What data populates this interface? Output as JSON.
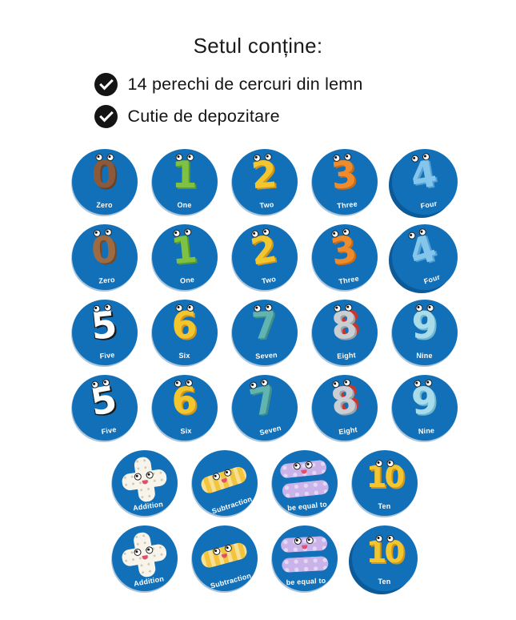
{
  "header": {
    "title": "Setul conține:",
    "items": [
      {
        "icon": "check-icon",
        "label": "14 perechi de cercuri din lemn"
      },
      {
        "icon": "check-icon",
        "label": "Cutie de depozitare"
      }
    ]
  },
  "colors": {
    "disc_blue": "#1170b8",
    "disc_shadow": "#0d5a99",
    "label_text": "#ffffff",
    "check_circle": "#141414"
  },
  "grid": {
    "rows": [
      {
        "tokens": [
          {
            "id": "zero-a",
            "type": "number",
            "glyph": "0",
            "label": "Zero",
            "animal": "monkey",
            "color": "#8a5a3a",
            "shade": "#6b4126",
            "rotate": 0
          },
          {
            "id": "one-a",
            "type": "number",
            "glyph": "1",
            "label": "One",
            "animal": "snake",
            "color": "#7fc243",
            "shade": "#589b2b",
            "rotate": 0
          },
          {
            "id": "two-a",
            "type": "number",
            "glyph": "2",
            "label": "Two",
            "animal": "duck",
            "color": "#f3c52e",
            "shade": "#d0951c",
            "rotate": -5
          },
          {
            "id": "three-a",
            "type": "number",
            "glyph": "3",
            "label": "Three",
            "animal": "fox",
            "color": "#ee8b2c",
            "shade": "#c66c18",
            "rotate": -6
          },
          {
            "id": "four-a",
            "type": "number",
            "glyph": "4",
            "label": "Four",
            "animal": "caterpillar",
            "color": "#84c5ec",
            "shade": "#53a0d4",
            "rotate": -10,
            "shadow": true
          }
        ]
      },
      {
        "tokens": [
          {
            "id": "zero-b",
            "type": "number",
            "glyph": "0",
            "label": "Zero",
            "animal": "sheep",
            "color": "#9c6b43",
            "shade": "#744a2b",
            "rotate": -5
          },
          {
            "id": "one-b",
            "type": "number",
            "glyph": "1",
            "label": "One",
            "animal": "snake",
            "color": "#7fc243",
            "shade": "#589b2b",
            "rotate": -6
          },
          {
            "id": "two-b",
            "type": "number",
            "glyph": "2",
            "label": "Two",
            "animal": "duck",
            "color": "#f3c52e",
            "shade": "#d0951c",
            "rotate": -10
          },
          {
            "id": "three-b",
            "type": "number",
            "glyph": "3",
            "label": "Three",
            "animal": "fox",
            "color": "#ee8b2c",
            "shade": "#c66c18",
            "rotate": -10
          },
          {
            "id": "four-b",
            "type": "number",
            "glyph": "4",
            "label": "Four",
            "animal": "caterpillar",
            "color": "#84c5ec",
            "shade": "#53a0d4",
            "rotate": -18,
            "shadow": true
          }
        ]
      },
      {
        "tokens": [
          {
            "id": "five-a",
            "type": "number",
            "glyph": "5",
            "label": "Five",
            "animal": "zebra",
            "color": "#ffffff",
            "shade": "#1a1a1a",
            "rotate": -6
          },
          {
            "id": "six-a",
            "type": "number",
            "glyph": "6",
            "label": "Six",
            "animal": "giraffe",
            "color": "#f3c52e",
            "shade": "#d0951c",
            "rotate": 0
          },
          {
            "id": "seven-a",
            "type": "number",
            "glyph": "7",
            "label": "Seven",
            "animal": "crocodile",
            "color": "#62b4b0",
            "shade": "#3f8f8c",
            "rotate": -4
          },
          {
            "id": "eight-a",
            "type": "number",
            "glyph": "8",
            "label": "Eight",
            "animal": "dinosaur",
            "color": "#c9ced4",
            "shade": "#9aa1a9",
            "rotate": -4
          },
          {
            "id": "nine-a",
            "type": "number",
            "glyph": "9",
            "label": "Nine",
            "animal": "elephant",
            "color": "#a8dcea",
            "shade": "#6fb8d0",
            "rotate": 0
          }
        ]
      },
      {
        "tokens": [
          {
            "id": "five-b",
            "type": "number",
            "glyph": "5",
            "label": "Five",
            "animal": "zebra",
            "color": "#ffffff",
            "shade": "#1a1a1a",
            "rotate": -10
          },
          {
            "id": "six-b",
            "type": "number",
            "glyph": "6",
            "label": "Six",
            "animal": "giraffe",
            "color": "#f3c52e",
            "shade": "#d0951c",
            "rotate": -3
          },
          {
            "id": "seven-b",
            "type": "number",
            "glyph": "7",
            "label": "Seven",
            "animal": "crocodile",
            "color": "#62b4b0",
            "shade": "#3f8f8c",
            "rotate": -14
          },
          {
            "id": "eight-b",
            "type": "number",
            "glyph": "8",
            "label": "Eight",
            "animal": "dinosaur",
            "color": "#c9ced4",
            "shade": "#9aa1a9",
            "rotate": -8
          },
          {
            "id": "nine-b",
            "type": "number",
            "glyph": "9",
            "label": "Nine",
            "animal": "elephant",
            "color": "#a8dcea",
            "shade": "#6fb8d0",
            "rotate": -4
          }
        ]
      },
      {
        "tokens": [
          {
            "id": "addition-a",
            "type": "plus",
            "glyph": "+",
            "label": "Addition",
            "color": "#f7f4ec",
            "shade": "#cfc9b8",
            "rotate": -8
          },
          {
            "id": "subtraction-a",
            "type": "minus",
            "glyph": "−",
            "label": "Subtraction",
            "color": "#f2c53c",
            "shade": "#d3a21f",
            "rotate": -18
          },
          {
            "id": "equals-a",
            "type": "equals",
            "glyph": "=",
            "label": "be equal to",
            "color": "#c9b3e9",
            "shade": "#a588d4",
            "rotate": -6
          },
          {
            "id": "ten-a",
            "type": "number",
            "glyph": "10",
            "label": "Ten",
            "animal": "chicks",
            "color": "#f3c52e",
            "shade": "#d0951c",
            "rotate": 0
          }
        ]
      },
      {
        "tokens": [
          {
            "id": "addition-b",
            "type": "plus",
            "glyph": "+",
            "label": "Addition",
            "color": "#f7f4ec",
            "shade": "#cfc9b8",
            "rotate": -10
          },
          {
            "id": "subtraction-b",
            "type": "minus",
            "glyph": "−",
            "label": "Subtraction",
            "color": "#f2c53c",
            "shade": "#d3a21f",
            "rotate": -15
          },
          {
            "id": "equals-b",
            "type": "equals",
            "glyph": "=",
            "label": "be equal to",
            "color": "#c9b3e9",
            "shade": "#a588d4",
            "rotate": -3
          },
          {
            "id": "ten-b",
            "type": "number",
            "glyph": "10",
            "label": "Ten",
            "animal": "chicks",
            "color": "#f3c52e",
            "shade": "#d0951c",
            "rotate": 0,
            "shadow": true
          }
        ]
      }
    ]
  }
}
